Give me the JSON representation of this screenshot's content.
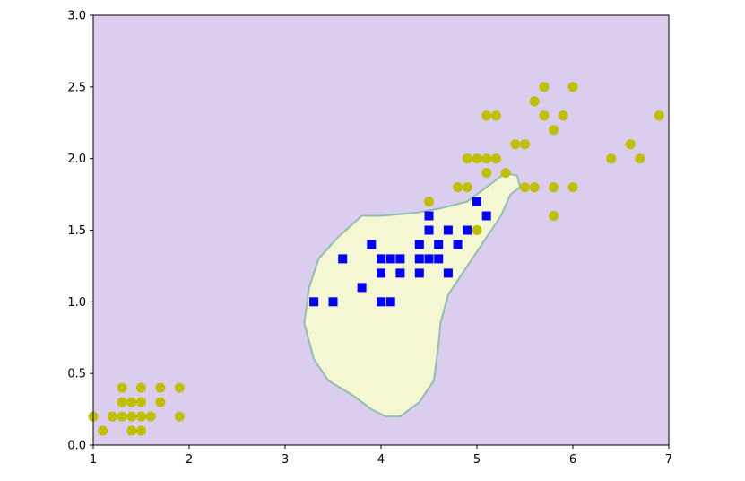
{
  "chart_data": {
    "type": "scatter",
    "title": "",
    "xlabel": "",
    "ylabel": "",
    "xlim": [
      1,
      7
    ],
    "ylim": [
      0,
      3
    ],
    "grid": false,
    "legend": "none",
    "x_ticks": [
      "1",
      "2",
      "3",
      "4",
      "5",
      "6",
      "7"
    ],
    "y_ticks": [
      "0.0",
      "0.5",
      "1.0",
      "1.5",
      "2.0",
      "2.5",
      "3.0"
    ],
    "colors": {
      "background_region": "#dacdee",
      "decision_region": "#f5f6d2",
      "boundary": "#8fbfb0",
      "class_square": "#0000ff",
      "class_circle": "#bfbf00"
    },
    "decision_region_outline": [
      [
        4.05,
        0.2
      ],
      [
        4.2,
        0.2
      ],
      [
        4.4,
        0.3
      ],
      [
        4.55,
        0.45
      ],
      [
        4.6,
        0.7
      ],
      [
        4.62,
        0.85
      ],
      [
        4.7,
        1.05
      ],
      [
        4.9,
        1.25
      ],
      [
        5.1,
        1.45
      ],
      [
        5.25,
        1.6
      ],
      [
        5.35,
        1.75
      ],
      [
        5.45,
        1.8
      ],
      [
        5.42,
        1.88
      ],
      [
        5.3,
        1.9
      ],
      [
        5.1,
        1.8
      ],
      [
        4.9,
        1.7
      ],
      [
        4.6,
        1.65
      ],
      [
        4.35,
        1.62
      ],
      [
        4.0,
        1.6
      ],
      [
        3.8,
        1.6
      ],
      [
        3.55,
        1.45
      ],
      [
        3.35,
        1.3
      ],
      [
        3.25,
        1.1
      ],
      [
        3.2,
        0.85
      ],
      [
        3.3,
        0.6
      ],
      [
        3.45,
        0.45
      ],
      [
        3.7,
        0.35
      ],
      [
        3.9,
        0.25
      ],
      [
        4.05,
        0.2
      ]
    ],
    "series": [
      {
        "marker": "square",
        "color": "#0000ff",
        "points": [
          [
            3.3,
            1.0
          ],
          [
            3.5,
            1.0
          ],
          [
            3.6,
            1.3
          ],
          [
            3.8,
            1.1
          ],
          [
            3.9,
            1.4
          ],
          [
            4.0,
            1.3
          ],
          [
            4.0,
            1.2
          ],
          [
            4.0,
            1.0
          ],
          [
            4.1,
            1.0
          ],
          [
            4.1,
            1.3
          ],
          [
            4.2,
            1.3
          ],
          [
            4.2,
            1.2
          ],
          [
            4.4,
            1.4
          ],
          [
            4.4,
            1.3
          ],
          [
            4.4,
            1.2
          ],
          [
            4.5,
            1.6
          ],
          [
            4.5,
            1.5
          ],
          [
            4.5,
            1.3
          ],
          [
            4.6,
            1.4
          ],
          [
            4.6,
            1.3
          ],
          [
            4.7,
            1.5
          ],
          [
            4.7,
            1.2
          ],
          [
            4.8,
            1.4
          ],
          [
            4.9,
            1.5
          ],
          [
            5.0,
            1.7
          ],
          [
            5.1,
            1.6
          ]
        ]
      },
      {
        "marker": "circle",
        "color": "#bfbf00",
        "points": [
          [
            1.0,
            0.2
          ],
          [
            1.1,
            0.1
          ],
          [
            1.2,
            0.2
          ],
          [
            1.3,
            0.4
          ],
          [
            1.3,
            0.3
          ],
          [
            1.3,
            0.2
          ],
          [
            1.4,
            0.3
          ],
          [
            1.4,
            0.2
          ],
          [
            1.4,
            0.1
          ],
          [
            1.5,
            0.4
          ],
          [
            1.5,
            0.3
          ],
          [
            1.5,
            0.2
          ],
          [
            1.5,
            0.1
          ],
          [
            1.6,
            0.2
          ],
          [
            1.7,
            0.4
          ],
          [
            1.7,
            0.3
          ],
          [
            1.9,
            0.4
          ],
          [
            1.9,
            0.2
          ],
          [
            4.5,
            1.7
          ],
          [
            4.8,
            1.8
          ],
          [
            4.9,
            2.0
          ],
          [
            4.9,
            1.8
          ],
          [
            5.0,
            2.0
          ],
          [
            5.0,
            1.5
          ],
          [
            5.1,
            2.3
          ],
          [
            5.1,
            2.0
          ],
          [
            5.1,
            1.9
          ],
          [
            5.2,
            2.3
          ],
          [
            5.2,
            2.0
          ],
          [
            5.3,
            1.9
          ],
          [
            5.4,
            2.1
          ],
          [
            5.5,
            2.1
          ],
          [
            5.5,
            1.8
          ],
          [
            5.6,
            2.4
          ],
          [
            5.6,
            1.8
          ],
          [
            5.7,
            2.5
          ],
          [
            5.7,
            2.3
          ],
          [
            5.8,
            2.2
          ],
          [
            5.8,
            1.8
          ],
          [
            5.8,
            1.6
          ],
          [
            5.9,
            2.3
          ],
          [
            6.0,
            2.5
          ],
          [
            6.0,
            1.8
          ],
          [
            6.4,
            2.0
          ],
          [
            6.6,
            2.1
          ],
          [
            6.7,
            2.0
          ],
          [
            6.9,
            2.3
          ]
        ]
      }
    ]
  }
}
